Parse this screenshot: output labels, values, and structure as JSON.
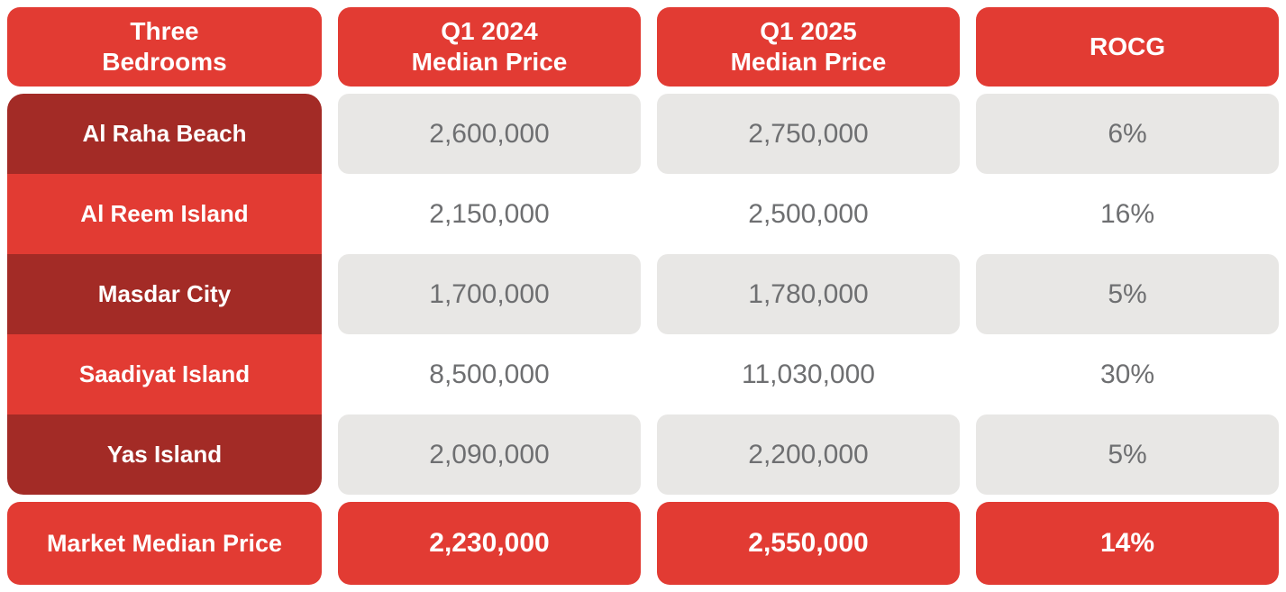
{
  "table": {
    "columns": [
      {
        "label": "Three\nBedrooms"
      },
      {
        "label": "Q1 2024\nMedian Price"
      },
      {
        "label": "Q1 2025\nMedian Price"
      },
      {
        "label": "ROCG"
      }
    ],
    "rows": [
      {
        "area": "Al Raha Beach",
        "q1_2024": "2,600,000",
        "q1_2025": "2,750,000",
        "rocg": "6%"
      },
      {
        "area": "Al Reem Island",
        "q1_2024": "2,150,000",
        "q1_2025": "2,500,000",
        "rocg": "16%"
      },
      {
        "area": "Masdar City",
        "q1_2024": "1,700,000",
        "q1_2025": "1,780,000",
        "rocg": "5%"
      },
      {
        "area": "Saadiyat Island",
        "q1_2024": "8,500,000",
        "q1_2025": "11,030,000",
        "rocg": "30%"
      },
      {
        "area": "Yas Island",
        "q1_2024": "2,090,000",
        "q1_2025": "2,200,000",
        "rocg": "5%"
      }
    ],
    "footer": {
      "label": "Market Median Price",
      "q1_2024": "2,230,000",
      "q1_2025": "2,550,000",
      "rocg": "14%"
    }
  },
  "colors": {
    "accent_red": "#E23B33",
    "dark_red": "#A32B26",
    "cell_gray": "#E8E7E5",
    "value_text": "#6E6F71",
    "header_text": "#FFFFFF"
  },
  "chart_data": {
    "type": "table",
    "title": "Three Bedrooms — Q1 2024 vs Q1 2025 Median Price and ROCG",
    "columns": [
      "Three Bedrooms",
      "Q1 2024 Median Price",
      "Q1 2025 Median Price",
      "ROCG"
    ],
    "rows": [
      [
        "Al Raha Beach",
        2600000,
        2750000,
        0.06
      ],
      [
        "Al Reem Island",
        2150000,
        2500000,
        0.16
      ],
      [
        "Masdar City",
        1700000,
        1780000,
        0.05
      ],
      [
        "Saadiyat Island",
        8500000,
        11030000,
        0.3
      ],
      [
        "Yas Island",
        2090000,
        2200000,
        0.05
      ]
    ],
    "footer_row": [
      "Market Median Price",
      2230000,
      2550000,
      0.14
    ],
    "layout": "striped table; shaded rows 1,3,5; red header and footer bands"
  }
}
